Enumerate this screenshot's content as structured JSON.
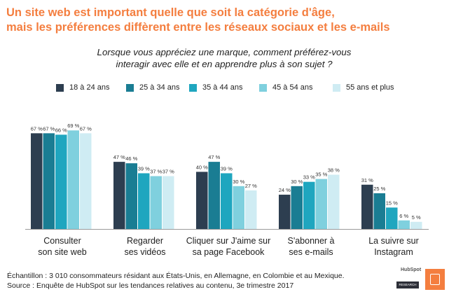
{
  "title_line1": "Un site web est important quelle que soit la catégorie d'âge,",
  "title_line2": "mais les préférences diffèrent entre les réseaux sociaux et les e-mails",
  "subtitle_line1": "Lorsque vous appréciez une marque, comment préférez-vous",
  "subtitle_line2": "interagir avec elle et en apprendre plus à son sujet ?",
  "footnote_line1": "Échantillon : 3 010 consommateurs résidant aux États-Unis, en Allemagne, en Colombie et au Mexique.",
  "footnote_line2": "Source : Enquête de HubSpot sur les tendances relatives au contenu, 3e trimestre 2017",
  "logo": {
    "brand": "HubSpot",
    "label": "RESEARCH"
  },
  "chart_data": {
    "type": "bar",
    "categories": [
      [
        "Consulter",
        "son site web"
      ],
      [
        "Regarder",
        "ses vidéos"
      ],
      [
        "Cliquer sur J'aime sur",
        "sa page Facebook"
      ],
      [
        "S'abonner à",
        "ses e-mails"
      ],
      [
        "La suivre sur",
        "Instagram"
      ]
    ],
    "series": [
      {
        "name": "18 à 24 ans",
        "color": "#2d3e50",
        "values": [
          67,
          47,
          40,
          24,
          31
        ]
      },
      {
        "name": "25 à 34 ans",
        "color": "#1a7d93",
        "values": [
          67,
          46,
          47,
          30,
          25
        ]
      },
      {
        "name": "35 à 44 ans",
        "color": "#1fa6bf",
        "values": [
          66,
          39,
          39,
          33,
          15
        ]
      },
      {
        "name": "45 à 54 ans",
        "color": "#7fd0de",
        "values": [
          69,
          37,
          30,
          35,
          6
        ]
      },
      {
        "name": "55 ans et plus",
        "color": "#cfecf3",
        "values": [
          67,
          37,
          27,
          38,
          5
        ]
      }
    ],
    "value_suffix": " %",
    "ylim": [
      0,
      100
    ],
    "legend_position": "top",
    "grid": false
  }
}
